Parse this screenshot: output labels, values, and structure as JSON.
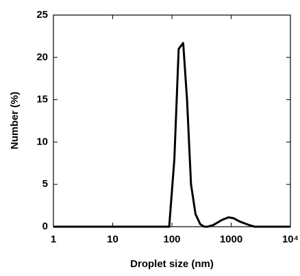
{
  "chart_data": {
    "type": "line",
    "xlabel": "Droplet size (nm)",
    "ylabel": "Number (%)",
    "xscale": "log",
    "x": [
      1,
      90,
      110,
      130,
      155,
      180,
      210,
      250,
      300,
      350,
      400,
      500,
      700,
      900,
      1100,
      1400,
      2000,
      2500,
      3000,
      10000
    ],
    "series": [
      {
        "name": "Number",
        "color": "#000000",
        "values": [
          0,
          0,
          8,
          21,
          21.7,
          15,
          5,
          1.5,
          0.3,
          0,
          0,
          0.2,
          0.8,
          1.1,
          1,
          0.6,
          0.2,
          0,
          0,
          0
        ]
      }
    ],
    "xlim": [
      1,
      10000
    ],
    "xticks": [
      1,
      10,
      100,
      1000,
      {
        "value": 10000,
        "label": "10⁴"
      }
    ],
    "ylim": [
      0,
      25
    ],
    "yticks": [
      0,
      5,
      10,
      15,
      20,
      25
    ]
  }
}
